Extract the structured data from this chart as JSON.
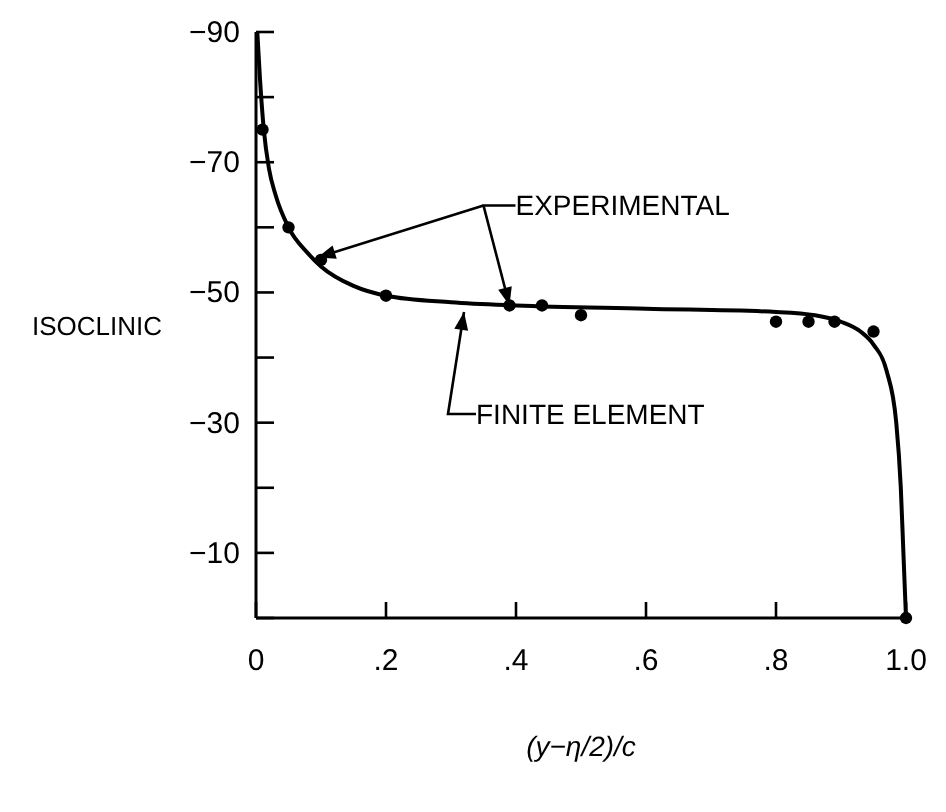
{
  "chart_data": {
    "type": "line",
    "ylabel": "ISOCLINIC",
    "xlabel": "(y−η/2)/c",
    "xlim": [
      0,
      1
    ],
    "xticks": [
      0,
      {
        "value": 0.2,
        "label": ".2"
      },
      {
        "value": 0.4,
        "label": ".4"
      },
      {
        "value": 0.6,
        "label": ".6"
      },
      {
        "value": 0.8,
        "label": ".8"
      },
      {
        "value": 1,
        "label": "1.0"
      }
    ],
    "ylim": [
      0,
      -90
    ],
    "yticks": [
      {
        "value": 0,
        "label": null
      },
      -10,
      {
        "value": -20,
        "label": null
      },
      -30,
      {
        "value": -40,
        "label": null
      },
      -50,
      {
        "value": -60,
        "label": null
      },
      -70,
      {
        "value": -80,
        "label": null
      },
      -90
    ],
    "grid": false,
    "series": [
      {
        "color": "#000000",
        "marker": "none",
        "line_style": "solid",
        "x": [
          0.002,
          0.006,
          0.012,
          0.02,
          0.03,
          0.05,
          0.08,
          0.1,
          0.15,
          0.2,
          0.3,
          0.4,
          0.6,
          0.8,
          0.86,
          0.9,
          0.93,
          0.95,
          0.97,
          0.985,
          0.992,
          0.996,
          1.0
        ],
        "values": [
          -90,
          -83,
          -75,
          -69,
          -65,
          -60,
          -56,
          -54,
          -51,
          -49.5,
          -48.5,
          -48,
          -47.5,
          -47,
          -46.5,
          -45.5,
          -44,
          -42,
          -38,
          -30,
          -20,
          -10,
          0
        ]
      },
      {
        "type": "scatter",
        "color": "#000000",
        "marker": "circle",
        "x": [
          0.01,
          0.05,
          0.1,
          0.2,
          0.39,
          0.44,
          0.5,
          0.8,
          0.85,
          0.89,
          0.95,
          1.0
        ],
        "values": [
          -75,
          -60,
          -55,
          -49.5,
          -48,
          -48,
          -46.5,
          -45.5,
          -45.5,
          -45.5,
          -44,
          0
        ]
      }
    ],
    "annotations": [
      {
        "text": "EXPERIMENTAL",
        "x": 0.39,
        "y": -48
      },
      {
        "text": "FINITE ELEMENT",
        "x": 0.32,
        "y": -47
      }
    ]
  }
}
